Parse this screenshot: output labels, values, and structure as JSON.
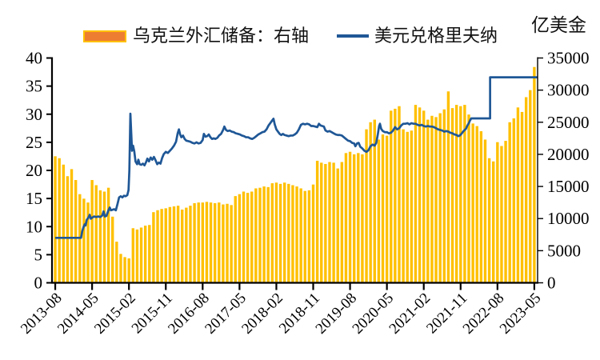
{
  "right_axis_unit_label": "亿美金",
  "legend": {
    "reserves_label": "乌克兰外汇储备：右轴",
    "fx_label": "美元兑格里夫纳"
  },
  "colors": {
    "bar_fill": "#FFC000",
    "legend_bar_fill": "#ED7D31",
    "legend_bar_border": "#FFC000",
    "line": "#1F5796",
    "axis": "#000000"
  },
  "chart_data": {
    "type": "combo",
    "subtype": "monthly bars (right axis) + rate line (left axis)",
    "start_month": "2013-08",
    "x_tick_labels": [
      "2013-08",
      "2014-05",
      "2015-02",
      "2015-11",
      "2016-08",
      "2017-05",
      "2018-02",
      "2018-11",
      "2019-08",
      "2020-05",
      "2021-02",
      "2021-11",
      "2022-08",
      "2023-05"
    ],
    "x_tick_interval_months": 9,
    "grid": "off",
    "legend_position": "top",
    "left_axis": {
      "min": 0,
      "max": 40,
      "step": 5,
      "series": "美元兑格里夫纳 (USD/UAH)"
    },
    "right_axis": {
      "min": 0,
      "max": 35000,
      "step": 5000,
      "series": "乌克兰外汇储备",
      "unit": "亿美金"
    },
    "bars": {
      "name": "乌克兰外汇储备：右轴",
      "axis": "right",
      "values": [
        19700,
        19400,
        18400,
        16600,
        17700,
        16000,
        13800,
        13100,
        12500,
        16000,
        15200,
        14400,
        14200,
        14800,
        10300,
        6400,
        4500,
        4000,
        3800,
        8500,
        8300,
        8600,
        8900,
        9000,
        11000,
        11300,
        11500,
        11600,
        11800,
        11900,
        12000,
        11400,
        11700,
        12000,
        12400,
        12500,
        12500,
        12600,
        12500,
        12400,
        12500,
        12200,
        12300,
        12100,
        13500,
        13800,
        14200,
        14000,
        14200,
        14700,
        14800,
        15000,
        14900,
        15500,
        15600,
        15400,
        15600,
        15400,
        15200,
        15000,
        14700,
        14300,
        14400,
        15300,
        19000,
        18700,
        18500,
        18800,
        18700,
        17800,
        18800,
        20200,
        20400,
        20000,
        20200,
        20000,
        23900,
        25000,
        25400,
        22300,
        23100,
        22900,
        26800,
        27100,
        27500,
        23900,
        23500,
        23700,
        27700,
        27300,
        26800,
        25400,
        26000,
        25800,
        26400,
        27000,
        29800,
        27200,
        27700,
        27500,
        27700,
        26200,
        24800,
        24400,
        23600,
        22300,
        19400,
        18900,
        21900,
        21300,
        22100,
        25000,
        25600,
        27300,
        26600,
        28900,
        30000,
        33600
      ]
    },
    "line": {
      "name": "美元兑格里夫纳",
      "axis": "left",
      "points": [
        [
          0,
          8
        ],
        [
          3,
          8
        ],
        [
          6.3,
          8
        ],
        [
          6.6,
          9.2
        ],
        [
          6.9,
          9.9
        ],
        [
          7.2,
          10.4
        ],
        [
          7.4,
          10.2
        ],
        [
          7.7,
          11.2
        ],
        [
          8.1,
          11.6
        ],
        [
          8.4,
          12.1
        ],
        [
          8.7,
          11.4
        ],
        [
          9,
          11.6
        ],
        [
          9.5,
          11.8
        ],
        [
          10,
          11.7
        ],
        [
          10.5,
          11.8
        ],
        [
          11,
          11.7
        ],
        [
          11.5,
          12
        ],
        [
          11.8,
          12.7
        ],
        [
          12.1,
          11.8
        ],
        [
          12.5,
          11.9
        ],
        [
          13,
          12.9
        ],
        [
          13.3,
          13.4
        ],
        [
          13.6,
          12.9
        ],
        [
          14,
          13
        ],
        [
          14.4,
          13.1
        ],
        [
          14.8,
          12.9
        ],
        [
          15.2,
          14
        ],
        [
          15.6,
          15.2
        ],
        [
          16,
          15.4
        ],
        [
          16.4,
          15.2
        ],
        [
          16.8,
          15.5
        ],
        [
          17.2,
          15.4
        ],
        [
          17.6,
          15.6
        ],
        [
          17.9,
          16.5
        ],
        [
          18.1,
          20
        ],
        [
          18.35,
          30.1
        ],
        [
          18.6,
          26
        ],
        [
          18.75,
          23.5
        ],
        [
          19,
          24.4
        ],
        [
          19.3,
          23.4
        ],
        [
          19.6,
          21.6
        ],
        [
          20,
          21.1
        ],
        [
          20.3,
          21.9
        ],
        [
          20.6,
          21.1
        ],
        [
          21,
          21
        ],
        [
          21.4,
          21.2
        ],
        [
          21.8,
          20.9
        ],
        [
          22.2,
          21.5
        ],
        [
          22.5,
          22.1
        ],
        [
          22.9,
          21.6
        ],
        [
          23.3,
          22.3
        ],
        [
          23.7,
          21.9
        ],
        [
          24.1,
          22.4
        ],
        [
          24.5,
          21.8
        ],
        [
          24.9,
          21.1
        ],
        [
          25.3,
          21.4
        ],
        [
          25.7,
          21.2
        ],
        [
          26.1,
          22.2
        ],
        [
          26.5,
          22.9
        ],
        [
          27,
          23.3
        ],
        [
          27.5,
          23.1
        ],
        [
          28,
          23.5
        ],
        [
          28.5,
          23.9
        ],
        [
          29,
          24.4
        ],
        [
          29.5,
          25.1
        ],
        [
          29.9,
          26.6
        ],
        [
          30.2,
          27.3
        ],
        [
          30.5,
          26.4
        ],
        [
          30.8,
          25.9
        ],
        [
          31.2,
          26.2
        ],
        [
          31.6,
          25.6
        ],
        [
          32,
          25.3
        ],
        [
          32.5,
          25.2
        ],
        [
          33,
          25.1
        ],
        [
          33.5,
          24.9
        ],
        [
          34,
          24.8
        ],
        [
          34.5,
          25
        ],
        [
          35,
          24.8
        ],
        [
          35.5,
          24.9
        ],
        [
          36,
          25.4
        ],
        [
          36.3,
          26.5
        ],
        [
          36.7,
          26
        ],
        [
          37.1,
          26.1
        ],
        [
          37.5,
          26.4
        ],
        [
          37.9,
          25.9
        ],
        [
          38.3,
          25.6
        ],
        [
          38.7,
          25.7
        ],
        [
          39.1,
          25.6
        ],
        [
          39.6,
          25.8
        ],
        [
          40,
          26.2
        ],
        [
          40.5,
          26.5
        ],
        [
          41,
          27.2
        ],
        [
          41.3,
          27.8
        ],
        [
          41.7,
          27.2
        ],
        [
          42.1,
          27
        ],
        [
          42.6,
          27.1
        ],
        [
          43.1,
          26.9
        ],
        [
          43.6,
          26.8
        ],
        [
          44.1,
          26.6
        ],
        [
          44.6,
          26.5
        ],
        [
          45.1,
          26.4
        ],
        [
          45.6,
          26.2
        ],
        [
          46.1,
          26.1
        ],
        [
          46.6,
          25.9
        ],
        [
          47.1,
          25.9
        ],
        [
          47.6,
          25.7
        ],
        [
          48.1,
          25.6
        ],
        [
          48.6,
          25.8
        ],
        [
          49.1,
          26.1
        ],
        [
          49.6,
          26.4
        ],
        [
          50.1,
          26.6
        ],
        [
          50.6,
          26.8
        ],
        [
          51.1,
          26.9
        ],
        [
          51.6,
          27.3
        ],
        [
          52.1,
          28
        ],
        [
          52.6,
          28.5
        ],
        [
          53,
          28.9
        ],
        [
          53.3,
          29.2
        ],
        [
          53.6,
          28.2
        ],
        [
          54,
          27.3
        ],
        [
          54.4,
          26.9
        ],
        [
          54.8,
          26.5
        ],
        [
          55.2,
          26.3
        ],
        [
          55.6,
          26.5
        ],
        [
          56,
          26.3
        ],
        [
          56.5,
          26.2
        ],
        [
          57,
          26.1
        ],
        [
          57.5,
          26.2
        ],
        [
          58,
          26.2
        ],
        [
          58.5,
          26.4
        ],
        [
          59,
          26.7
        ],
        [
          59.5,
          27.3
        ],
        [
          60,
          28.1
        ],
        [
          60.5,
          28.3
        ],
        [
          61,
          28.2
        ],
        [
          61.5,
          28.3
        ],
        [
          62,
          28.2
        ],
        [
          62.5,
          27.9
        ],
        [
          63,
          27.9
        ],
        [
          63.5,
          27.8
        ],
        [
          64,
          27.7
        ],
        [
          64.4,
          28.3
        ],
        [
          64.8,
          28
        ],
        [
          65.2,
          27.9
        ],
        [
          65.6,
          27.8
        ],
        [
          66,
          27.1
        ],
        [
          66.5,
          26.9
        ],
        [
          67,
          27
        ],
        [
          67.5,
          26.8
        ],
        [
          68,
          26.6
        ],
        [
          68.5,
          26.4
        ],
        [
          69,
          26.3
        ],
        [
          69.5,
          26.3
        ],
        [
          70,
          26.2
        ],
        [
          70.5,
          25.9
        ],
        [
          71,
          25.6
        ],
        [
          71.5,
          25.3
        ],
        [
          72,
          25.2
        ],
        [
          72.5,
          24.9
        ],
        [
          73,
          24.8
        ],
        [
          73.3,
          24.3
        ],
        [
          73.7,
          24.8
        ],
        [
          74.1,
          24.9
        ],
        [
          74.5,
          24.2
        ],
        [
          75,
          23.9
        ],
        [
          75.5,
          23.5
        ],
        [
          76,
          23.3
        ],
        [
          76.5,
          23.6
        ],
        [
          77,
          24.3
        ],
        [
          77.5,
          24.6
        ],
        [
          78,
          24.4
        ],
        [
          78.4,
          24.9
        ],
        [
          78.8,
          26.5
        ],
        [
          79.1,
          27.9
        ],
        [
          79.3,
          28.3
        ],
        [
          79.6,
          27.4
        ],
        [
          80,
          27
        ],
        [
          80.5,
          26.8
        ],
        [
          81,
          26.8
        ],
        [
          81.5,
          26.6
        ],
        [
          82,
          26.7
        ],
        [
          82.5,
          27.1
        ],
        [
          83,
          27.7
        ],
        [
          83.5,
          27.3
        ],
        [
          84,
          27.5
        ],
        [
          84.5,
          28
        ],
        [
          85,
          28.3
        ],
        [
          85.5,
          28.3
        ],
        [
          86,
          28.4
        ],
        [
          86.5,
          28.2
        ],
        [
          87,
          28.4
        ],
        [
          87.5,
          28.3
        ],
        [
          88,
          28.3
        ],
        [
          88.5,
          28.1
        ],
        [
          89,
          28
        ],
        [
          89.5,
          28.1
        ],
        [
          90,
          27.9
        ],
        [
          90.5,
          27.8
        ],
        [
          91,
          27.9
        ],
        [
          91.5,
          27.8
        ],
        [
          92,
          27.8
        ],
        [
          92.5,
          27.7
        ],
        [
          93,
          27.5
        ],
        [
          93.5,
          27.3
        ],
        [
          94,
          27.2
        ],
        [
          94.5,
          27.1
        ],
        [
          95,
          26.9
        ],
        [
          95.5,
          27
        ],
        [
          96,
          26.9
        ],
        [
          96.5,
          26.7
        ],
        [
          97,
          26.6
        ],
        [
          97.5,
          26.4
        ],
        [
          98,
          26.3
        ],
        [
          98.4,
          26.1
        ],
        [
          98.8,
          26.2
        ],
        [
          99.2,
          26.5
        ],
        [
          99.6,
          26.9
        ],
        [
          100,
          27.2
        ],
        [
          100.3,
          27.4
        ],
        [
          100.6,
          27.9
        ],
        [
          101,
          28.4
        ],
        [
          101.3,
          28.9
        ],
        [
          101.6,
          29.25
        ],
        [
          106.2,
          29.25
        ],
        [
          106.2,
          36.57
        ],
        [
          117.9,
          36.57
        ]
      ]
    }
  }
}
